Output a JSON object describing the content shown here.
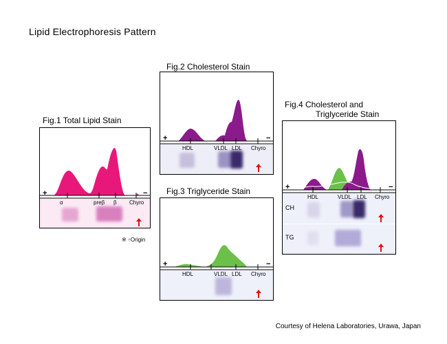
{
  "title": "Lipid Electrophoresis Pattern",
  "credit": "Courtesy of Helena Laboratories, Urawa, Japan",
  "origin_note": "※ ↑Origin",
  "signs": {
    "plus": "+",
    "minus": "−"
  },
  "fig1": {
    "caption": "Fig.1 Total Lipid Stain",
    "labels": [
      "α",
      "preβ",
      "β",
      "Chyro"
    ],
    "color": "#e8187a"
  },
  "fig2": {
    "caption": "Fig.2 Cholesterol Stain",
    "labels": [
      "HDL",
      "VLDL",
      "LDL",
      "Chyro"
    ],
    "color": "#8b1a8b"
  },
  "fig3": {
    "caption": "Fig.3 Triglyceride Stain",
    "labels": [
      "HDL",
      "VLDL",
      "LDL",
      "Chyro"
    ],
    "color": "#6cc04a"
  },
  "fig4": {
    "caption_line1": "Fig.4 Cholesterol and",
    "caption_line2": "Triglyceride Stain",
    "labels": [
      "HDL",
      "VLDL",
      "LDL",
      "Chyro"
    ],
    "rows": [
      "CH",
      "TG"
    ],
    "colors": [
      "#8b1a8b",
      "#6cc04a"
    ]
  },
  "arrow_color": "#e01010"
}
